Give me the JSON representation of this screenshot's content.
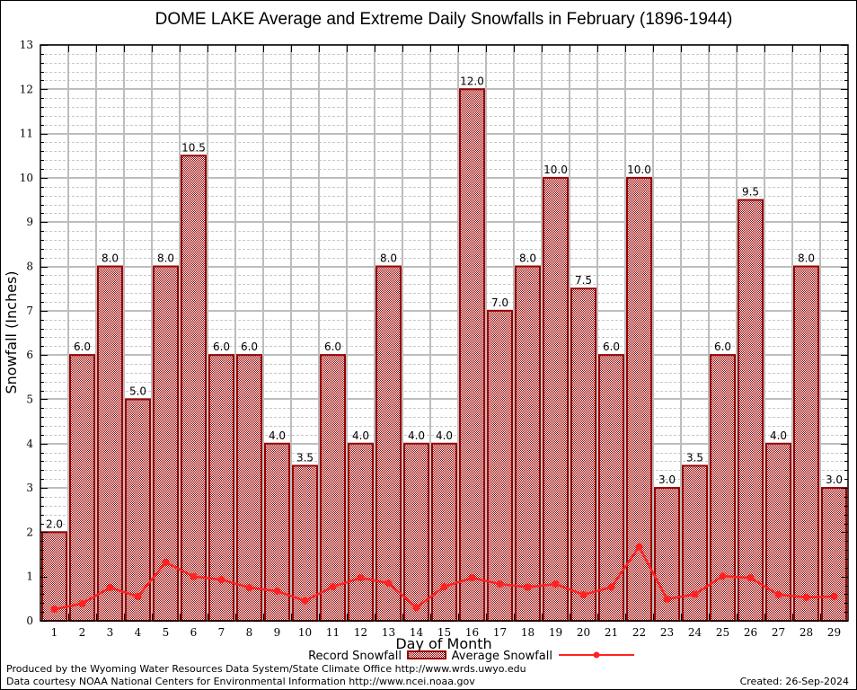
{
  "chart_data": {
    "type": "bar",
    "title": "DOME LAKE Average and Extreme Daily Snowfalls in February (1896-1944)",
    "xlabel": "Day of Month",
    "ylabel": "Snowfall (Inches)",
    "ylim": [
      0,
      13
    ],
    "yticks": [
      "0",
      "1",
      "2",
      "3",
      "4",
      "5",
      "6",
      "7",
      "8",
      "9",
      "10",
      "11",
      "12",
      "13"
    ],
    "categories": [
      "1",
      "2",
      "3",
      "4",
      "5",
      "6",
      "7",
      "8",
      "9",
      "10",
      "11",
      "12",
      "13",
      "14",
      "15",
      "16",
      "17",
      "18",
      "19",
      "20",
      "21",
      "22",
      "23",
      "24",
      "25",
      "26",
      "27",
      "28",
      "29"
    ],
    "grid": true,
    "series": [
      {
        "name": "Record Snowfall",
        "type": "bar",
        "color": "#990000",
        "values": [
          2.0,
          6.0,
          8.0,
          5.0,
          8.0,
          10.5,
          6.0,
          6.0,
          4.0,
          3.5,
          6.0,
          4.0,
          8.0,
          4.0,
          4.0,
          12.0,
          7.0,
          8.0,
          10.0,
          7.5,
          6.0,
          10.0,
          3.0,
          3.5,
          6.0,
          9.5,
          4.0,
          8.0,
          3.0
        ],
        "labels": [
          "2.0",
          "6.0",
          "8.0",
          "5.0",
          "8.0",
          "10.5",
          "6.0",
          "6.0",
          "4.0",
          "3.5",
          "6.0",
          "4.0",
          "8.0",
          "4.0",
          "4.0",
          "12.0",
          "7.0",
          "8.0",
          "10.0",
          "7.5",
          "6.0",
          "10.0",
          "3.0",
          "3.5",
          "6.0",
          "9.5",
          "4.0",
          "8.0",
          "3.0"
        ]
      },
      {
        "name": "Average Snowfall",
        "type": "line",
        "color": "#ff2222",
        "values": [
          0.26,
          0.39,
          0.75,
          0.55,
          1.32,
          1.0,
          0.93,
          0.75,
          0.67,
          0.45,
          0.77,
          0.97,
          0.85,
          0.3,
          0.77,
          0.97,
          0.83,
          0.76,
          0.83,
          0.59,
          0.76,
          1.67,
          0.49,
          0.6,
          1.01,
          0.97,
          0.59,
          0.53,
          0.55
        ]
      }
    ],
    "legend_position": "bottom-center"
  },
  "footer": {
    "line1": "Produced by the Wyoming Water Resources Data System/State Climate Office http://www.wrds.uwyo.edu",
    "line2": "Data courtesy NOAA National Centers for Environmental Information http://www.ncei.noaa.gov",
    "created": "Created:  26-Sep-2024"
  }
}
